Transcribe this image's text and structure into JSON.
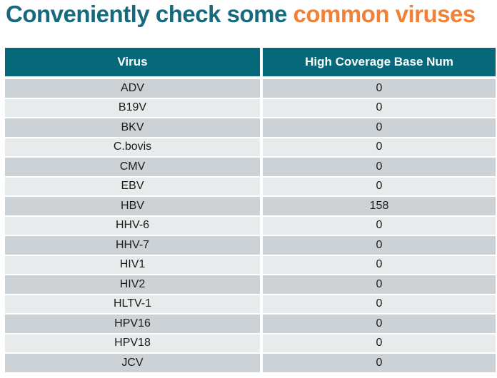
{
  "title": {
    "part1": "Conveniently check some ",
    "part2": "common viruses"
  },
  "colors": {
    "title_teal": "#17697c",
    "title_orange": "#f08138",
    "header_bg": "#07687a",
    "header_text": "#ffffff",
    "row_dark": "#ccd2d5",
    "row_light": "#e8ebec",
    "row_text": "#1a1a1a"
  },
  "table": {
    "columns": [
      "Virus",
      "High Coverage Base Num"
    ],
    "rows": [
      {
        "virus": "ADV",
        "value": "0"
      },
      {
        "virus": "B19V",
        "value": "0"
      },
      {
        "virus": "BKV",
        "value": "0"
      },
      {
        "virus": "C.bovis",
        "value": "0"
      },
      {
        "virus": "CMV",
        "value": "0"
      },
      {
        "virus": "EBV",
        "value": "0"
      },
      {
        "virus": "HBV",
        "value": "158"
      },
      {
        "virus": "HHV-6",
        "value": "0"
      },
      {
        "virus": "HHV-7",
        "value": "0"
      },
      {
        "virus": "HIV1",
        "value": "0"
      },
      {
        "virus": "HIV2",
        "value": "0"
      },
      {
        "virus": "HLTV-1",
        "value": "0"
      },
      {
        "virus": "HPV16",
        "value": "0"
      },
      {
        "virus": "HPV18",
        "value": "0"
      },
      {
        "virus": "JCV",
        "value": "0"
      }
    ]
  }
}
